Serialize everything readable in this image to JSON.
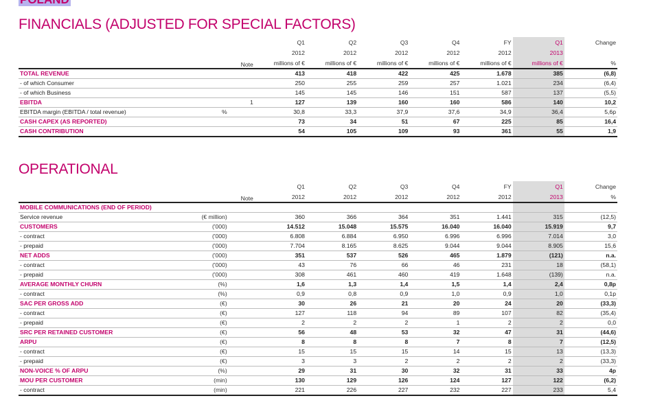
{
  "country": "POLAND",
  "financials": {
    "title": "FINANCIALS (ADJUSTED FOR SPECIAL FACTORS)",
    "header": {
      "note": "Note",
      "columns": [
        {
          "l1": "Q1",
          "l2": "2012",
          "l3": "millions of €"
        },
        {
          "l1": "Q2",
          "l2": "2012",
          "l3": "millions of €"
        },
        {
          "l1": "Q3",
          "l2": "2012",
          "l3": "millions of €"
        },
        {
          "l1": "Q4",
          "l2": "2012",
          "l3": "millions of €"
        },
        {
          "l1": "FY",
          "l2": "2012",
          "l3": "millions of €"
        },
        {
          "l1": "Q1",
          "l2": "2013",
          "l3": "millions of €"
        }
      ],
      "change": {
        "l1": "Change",
        "l2": "",
        "l3": "%"
      }
    },
    "rows": [
      {
        "label": "TOTAL REVENUE",
        "unit": "",
        "note": "",
        "v": [
          "413",
          "418",
          "422",
          "425",
          "1.678",
          "385"
        ],
        "chg": "(6,8)"
      },
      {
        "label": "- of which Consumer",
        "unit": "",
        "note": "",
        "v": [
          "250",
          "255",
          "259",
          "257",
          "1.021",
          "234"
        ],
        "chg": "(6,4)"
      },
      {
        "label": "- of which Business",
        "unit": "",
        "note": "",
        "v": [
          "145",
          "145",
          "146",
          "151",
          "587",
          "137"
        ],
        "chg": "(5,5)"
      },
      {
        "label": "EBITDA",
        "unit": "",
        "note": "1",
        "v": [
          "127",
          "139",
          "160",
          "160",
          "586",
          "140"
        ],
        "chg": "10,2"
      },
      {
        "label": "EBITDA margin (EBITDA / total revenue)",
        "unit": "%",
        "note": "",
        "v": [
          "30,8",
          "33,3",
          "37,9",
          "37,6",
          "34,9",
          "36,4"
        ],
        "chg": "5,6p"
      },
      {
        "label": "CASH CAPEX (AS REPORTED)",
        "unit": "",
        "note": "",
        "v": [
          "73",
          "34",
          "51",
          "67",
          "225",
          "85"
        ],
        "chg": "16,4"
      },
      {
        "label": "CASH CONTRIBUTION",
        "unit": "",
        "note": "",
        "v": [
          "54",
          "105",
          "109",
          "93",
          "361",
          "55"
        ],
        "chg": "1,9"
      }
    ]
  },
  "operational": {
    "title": "OPERATIONAL",
    "header": {
      "note": "Note",
      "columns": [
        {
          "l1": "Q1",
          "l2": "2012"
        },
        {
          "l1": "Q2",
          "l2": "2012"
        },
        {
          "l1": "Q3",
          "l2": "2012"
        },
        {
          "l1": "Q4",
          "l2": "2012"
        },
        {
          "l1": "FY",
          "l2": "2012"
        },
        {
          "l1": "Q1",
          "l2": "2013"
        }
      ],
      "change": {
        "l1": "Change",
        "l2": "%"
      }
    },
    "section": "MOBILE COMMUNICATIONS (END OF PERIOD)",
    "rows": [
      {
        "label": "Service revenue",
        "unit": "(€ million)",
        "v": [
          "360",
          "366",
          "364",
          "351",
          "1.441",
          "315"
        ],
        "chg": "(12,5)"
      },
      {
        "label": "CUSTOMERS",
        "unit": "('000)",
        "v": [
          "14.512",
          "15.048",
          "15.575",
          "16.040",
          "16.040",
          "15.919"
        ],
        "chg": "9,7"
      },
      {
        "label": "- contract",
        "unit": "('000)",
        "v": [
          "6.808",
          "6.884",
          "6.950",
          "6.996",
          "6.996",
          "7.014"
        ],
        "chg": "3,0"
      },
      {
        "label": "- prepaid",
        "unit": "('000)",
        "v": [
          "7.704",
          "8.165",
          "8.625",
          "9.044",
          "9.044",
          "8.905"
        ],
        "chg": "15,6"
      },
      {
        "label": "NET ADDS",
        "unit": "('000)",
        "v": [
          "351",
          "537",
          "526",
          "465",
          "1.879",
          "(121)"
        ],
        "chg": "n.a."
      },
      {
        "label": "- contract",
        "unit": "('000)",
        "v": [
          "43",
          "76",
          "66",
          "46",
          "231",
          "18"
        ],
        "chg": "(58,1)"
      },
      {
        "label": "- prepaid",
        "unit": "('000)",
        "v": [
          "308",
          "461",
          "460",
          "419",
          "1.648",
          "(139)"
        ],
        "chg": "n.a."
      },
      {
        "label": "AVERAGE MONTHLY CHURN",
        "unit": "(%)",
        "v": [
          "1,6",
          "1,3",
          "1,4",
          "1,5",
          "1,4",
          "2,4"
        ],
        "chg": "0,8p"
      },
      {
        "label": "- contract",
        "unit": "(%)",
        "v": [
          "0,9",
          "0,8",
          "0,9",
          "1,0",
          "0,9",
          "1,0"
        ],
        "chg": "0,1p"
      },
      {
        "label": "SAC PER GROSS ADD",
        "unit": "(€)",
        "v": [
          "30",
          "26",
          "21",
          "20",
          "24",
          "20"
        ],
        "chg": "(33,3)"
      },
      {
        "label": "- contract",
        "unit": "(€)",
        "v": [
          "127",
          "118",
          "94",
          "89",
          "107",
          "82"
        ],
        "chg": "(35,4)"
      },
      {
        "label": "- prepaid",
        "unit": "(€)",
        "v": [
          "2",
          "2",
          "2",
          "1",
          "2",
          "2"
        ],
        "chg": "0,0"
      },
      {
        "label": "SRC PER RETAINED CUSTOMER",
        "unit": "(€)",
        "v": [
          "56",
          "48",
          "53",
          "32",
          "47",
          "31"
        ],
        "chg": "(44,6)"
      },
      {
        "label": "ARPU",
        "unit": "(€)",
        "v": [
          "8",
          "8",
          "8",
          "7",
          "8",
          "7"
        ],
        "chg": "(12,5)"
      },
      {
        "label": "- contract",
        "unit": "(€)",
        "v": [
          "15",
          "15",
          "15",
          "14",
          "15",
          "13"
        ],
        "chg": "(13,3)"
      },
      {
        "label": "- prepaid",
        "unit": "(€)",
        "v": [
          "3",
          "3",
          "2",
          "2",
          "2",
          "2"
        ],
        "chg": "(33,3)"
      },
      {
        "label": "NON-VOICE % OF ARPU",
        "unit": "(%)",
        "v": [
          "29",
          "31",
          "30",
          "32",
          "31",
          "33"
        ],
        "chg": "4p"
      },
      {
        "label": "MOU PER CUSTOMER",
        "unit": "(min)",
        "v": [
          "130",
          "129",
          "126",
          "124",
          "127",
          "122"
        ],
        "chg": "(6,2)"
      },
      {
        "label": "- contract",
        "unit": "(min)",
        "v": [
          "221",
          "226",
          "227",
          "232",
          "227",
          "233"
        ],
        "chg": "5,4"
      }
    ]
  },
  "colors": {
    "accent": "#c2006b",
    "highlight_column": "#dcdcdc",
    "country_badge": "#b7b3ee"
  }
}
